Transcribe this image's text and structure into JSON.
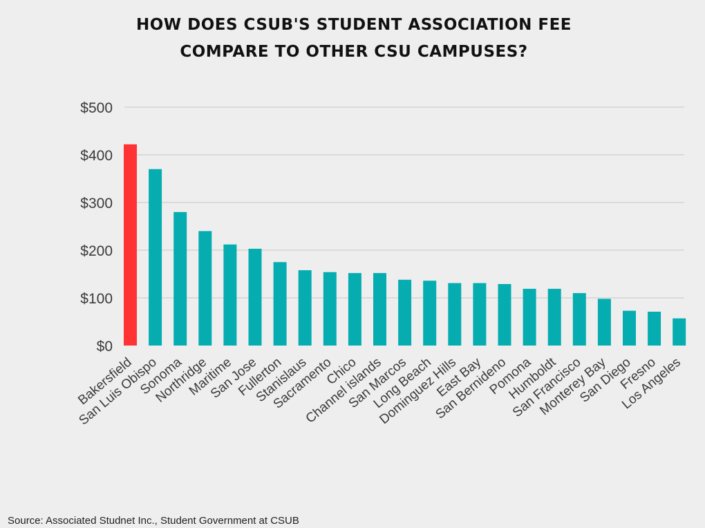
{
  "chart_data": {
    "type": "bar",
    "title_lines": [
      "HOW DOES CSUB'S STUDENT ASSOCIATION FEE",
      "COMPARE TO OTHER CSU CAMPUSES?"
    ],
    "xlabel": "",
    "ylabel": "",
    "ylim": [
      0,
      500
    ],
    "y_ticks": [
      0,
      100,
      200,
      300,
      400,
      500
    ],
    "y_tick_labels": [
      "$0",
      "$100",
      "$200",
      "$300",
      "$400",
      "$500"
    ],
    "grid": true,
    "legend": "none",
    "categories": [
      "Bakersfield",
      "San Luis Obispo",
      "Sonoma",
      "Northridge",
      "Maritime",
      "San Jose",
      "Fullerton",
      "Stanislaus",
      "Sacramento",
      "Chico",
      "Channel islands",
      "San Marcos",
      "Long Beach",
      "Dominguez Hills",
      "East Bay",
      "San Bernideno",
      "Pomona",
      "Humboldt",
      "San Francisco",
      "Monterey Bay",
      "San Diego",
      "Fresno",
      "Los Angeles"
    ],
    "values": [
      422,
      370,
      280,
      240,
      212,
      203,
      175,
      158,
      154,
      152,
      152,
      138,
      136,
      131,
      131,
      129,
      119,
      119,
      110,
      98,
      73,
      71,
      57
    ],
    "highlight_category": "Bakersfield",
    "colors": {
      "highlight": "#ff3333",
      "bar": "#05adb1"
    }
  },
  "source": "Source: Associated Studnet Inc., Student Government at CSUB"
}
